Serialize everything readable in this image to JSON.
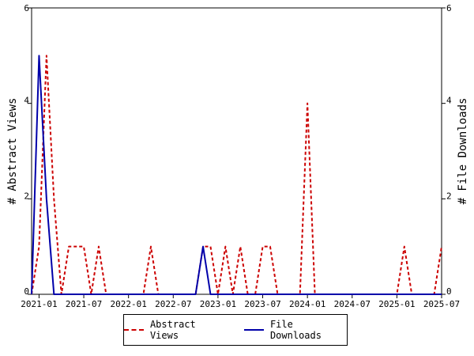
{
  "chart_data": {
    "type": "line",
    "x": [
      "2020-12",
      "2021-01",
      "2021-02",
      "2021-03",
      "2021-04",
      "2021-05",
      "2021-06",
      "2021-07",
      "2021-08",
      "2021-09",
      "2021-10",
      "2021-11",
      "2021-12",
      "2022-01",
      "2022-02",
      "2022-03",
      "2022-04",
      "2022-05",
      "2022-06",
      "2022-07",
      "2022-08",
      "2022-09",
      "2022-10",
      "2022-11",
      "2022-12",
      "2023-01",
      "2023-02",
      "2023-03",
      "2023-04",
      "2023-05",
      "2023-06",
      "2023-07",
      "2023-08",
      "2023-09",
      "2023-10",
      "2023-11",
      "2023-12",
      "2024-01",
      "2024-02",
      "2024-03",
      "2024-04",
      "2024-05",
      "2024-06",
      "2024-07",
      "2024-08",
      "2024-09",
      "2024-10",
      "2024-11",
      "2024-12",
      "2025-01",
      "2025-02",
      "2025-03",
      "2025-04",
      "2025-05",
      "2025-06",
      "2025-07"
    ],
    "series": [
      {
        "name": "Abstract Views",
        "color": "#cc0000",
        "dash": true,
        "values": [
          0,
          1,
          5,
          2,
          0,
          1,
          1,
          1,
          0,
          1,
          0,
          0,
          0,
          0,
          0,
          0,
          1,
          0,
          0,
          0,
          0,
          0,
          0,
          1,
          1,
          0,
          1,
          0,
          1,
          0,
          0,
          1,
          1,
          0,
          0,
          0,
          0,
          4,
          0,
          0,
          0,
          0,
          0,
          0,
          0,
          0,
          0,
          0,
          0,
          0,
          1,
          0,
          0,
          0,
          0,
          1
        ]
      },
      {
        "name": "File Downloads",
        "color": "#0000aa",
        "dash": false,
        "values": [
          0,
          5,
          2,
          0,
          0,
          0,
          0,
          0,
          0,
          0,
          0,
          0,
          0,
          0,
          0,
          0,
          0,
          0,
          0,
          0,
          0,
          0,
          0,
          1,
          0,
          0,
          0,
          0,
          0,
          0,
          0,
          0,
          0,
          0,
          0,
          0,
          0,
          0,
          0,
          0,
          0,
          0,
          0,
          0,
          0,
          0,
          0,
          0,
          0,
          0,
          0,
          0,
          0,
          0,
          0,
          0
        ]
      }
    ],
    "x_tick_labels": [
      "2021-01",
      "2021-07",
      "2022-01",
      "2022-07",
      "2023-01",
      "2023-07",
      "2024-01",
      "2024-07",
      "2025-01",
      "2025-07"
    ],
    "x_tick_indices": [
      1,
      7,
      13,
      19,
      25,
      31,
      37,
      43,
      49,
      55
    ],
    "ylabel_left": "# Abstract Views",
    "ylabel_right": "# File Downloads",
    "ylim_left": [
      0,
      6
    ],
    "ylim_right": [
      0,
      6
    ],
    "yticks": [
      0,
      2,
      4,
      6
    ],
    "grid": false,
    "legend_position": "bottom"
  }
}
